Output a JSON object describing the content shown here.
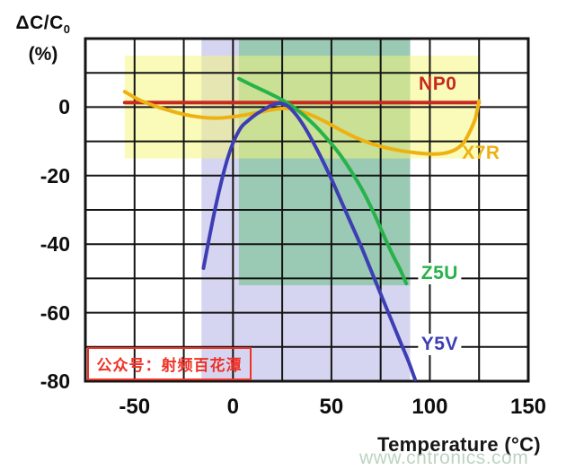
{
  "axes": {
    "y_title_main": "ΔC/C",
    "y_title_sub": "0",
    "y_title_unit": "(%)",
    "x_title": "Temperature (°C)",
    "x_ticks": [
      {
        "t": -50,
        "label": "-50"
      },
      {
        "t": 0,
        "label": "0"
      },
      {
        "t": 50,
        "label": "50"
      },
      {
        "t": 100,
        "label": "100"
      },
      {
        "t": 150,
        "label": "150"
      }
    ],
    "y_ticks": [
      {
        "v": 0,
        "label": "0"
      },
      {
        "v": -20,
        "label": "-20"
      },
      {
        "v": -40,
        "label": "-40"
      },
      {
        "v": -60,
        "label": "-60"
      },
      {
        "v": -80,
        "label": "-80"
      }
    ]
  },
  "watermarks": {
    "site": "www.cntronics.com",
    "wechat": "公众号：射频百花潭"
  },
  "chart_data": {
    "type": "line",
    "title": "",
    "xlabel": "Temperature (°C)",
    "ylabel": "ΔC/C0 (%)",
    "xlim": [
      -75,
      150
    ],
    "ylim": [
      -80,
      20
    ],
    "grid": {
      "x_step": 25,
      "y_step": 10,
      "color": "#141414",
      "on": true
    },
    "legend": "inline-labels",
    "bands": [
      {
        "name": "y5v-range",
        "x": [
          -16,
          90
        ],
        "y": [
          -80,
          20
        ],
        "color": "rgba(150,150,220,0.40)"
      },
      {
        "name": "z5u-range",
        "x": [
          3,
          90
        ],
        "y": [
          -52,
          20
        ],
        "color": "rgba(100,190,125,0.52)"
      },
      {
        "name": "x7r-range",
        "x": [
          -55,
          125
        ],
        "y": [
          -15,
          15
        ],
        "color": "rgba(246,246,120,0.52)"
      }
    ],
    "series": [
      {
        "name": "NP0",
        "color": "#c8291e",
        "label_at": [
          104,
          6.7
        ],
        "label_bg": false,
        "points": [
          [
            -55,
            1.3
          ],
          [
            125,
            1.3
          ]
        ]
      },
      {
        "name": "X7R",
        "color": "#eeb111",
        "label_at": [
          126,
          -13.5
        ],
        "label_bg": false,
        "points": [
          [
            -55,
            4.5
          ],
          [
            -48,
            2.2
          ],
          [
            -41,
            0.6
          ],
          [
            -33,
            -0.9
          ],
          [
            -25,
            -2.1
          ],
          [
            -17,
            -2.9
          ],
          [
            -9,
            -3.2
          ],
          [
            -1,
            -2.9
          ],
          [
            7,
            -2.2
          ],
          [
            15,
            -1.3
          ],
          [
            22,
            -0.6
          ],
          [
            27,
            -0.4
          ],
          [
            33,
            -1
          ],
          [
            40,
            -2.4
          ],
          [
            47,
            -4.3
          ],
          [
            54,
            -6.5
          ],
          [
            62,
            -8.8
          ],
          [
            70,
            -10.6
          ],
          [
            78,
            -11.9
          ],
          [
            86,
            -12.8
          ],
          [
            94,
            -13.4
          ],
          [
            102,
            -13.7
          ],
          [
            108,
            -13.4
          ],
          [
            113,
            -12.4
          ],
          [
            117,
            -10.5
          ],
          [
            120,
            -7.5
          ],
          [
            123,
            -3.5
          ],
          [
            125,
            1.8
          ]
        ]
      },
      {
        "name": "Z5U",
        "color": "#27b24a",
        "label_at": [
          105,
          -48.6
        ],
        "label_bg": true,
        "points": [
          [
            3,
            8.3
          ],
          [
            10,
            6.3
          ],
          [
            17,
            4.4
          ],
          [
            24,
            2.4
          ],
          [
            30,
            0.3
          ],
          [
            36,
            -2.4
          ],
          [
            42,
            -5.6
          ],
          [
            48,
            -9.4
          ],
          [
            54,
            -13.6
          ],
          [
            60,
            -18.7
          ],
          [
            66,
            -24.5
          ],
          [
            72,
            -31.5
          ],
          [
            77,
            -38
          ],
          [
            81,
            -43
          ],
          [
            85,
            -47.5
          ],
          [
            88,
            -51.5
          ]
        ]
      },
      {
        "name": "Y5V",
        "color": "#3e3eb4",
        "label_at": [
          105,
          -69.3
        ],
        "label_bg": true,
        "points": [
          [
            -15,
            -47
          ],
          [
            -12,
            -38
          ],
          [
            -9,
            -29.5
          ],
          [
            -6,
            -22
          ],
          [
            -3,
            -15.5
          ],
          [
            0,
            -10.5
          ],
          [
            4,
            -6
          ],
          [
            8,
            -3.8
          ],
          [
            12,
            -2
          ],
          [
            16,
            -0.6
          ],
          [
            20,
            0.6
          ],
          [
            24,
            1.1
          ],
          [
            28,
            0.2
          ],
          [
            32,
            -2.2
          ],
          [
            36,
            -5.5
          ],
          [
            40,
            -9.5
          ],
          [
            45,
            -15
          ],
          [
            50,
            -21
          ],
          [
            55,
            -27.5
          ],
          [
            60,
            -34
          ],
          [
            65,
            -40.5
          ],
          [
            70,
            -47.5
          ],
          [
            75,
            -54.5
          ],
          [
            80,
            -61.5
          ],
          [
            85,
            -68.5
          ],
          [
            89,
            -74
          ],
          [
            92.5,
            -79.5
          ]
        ]
      }
    ]
  }
}
